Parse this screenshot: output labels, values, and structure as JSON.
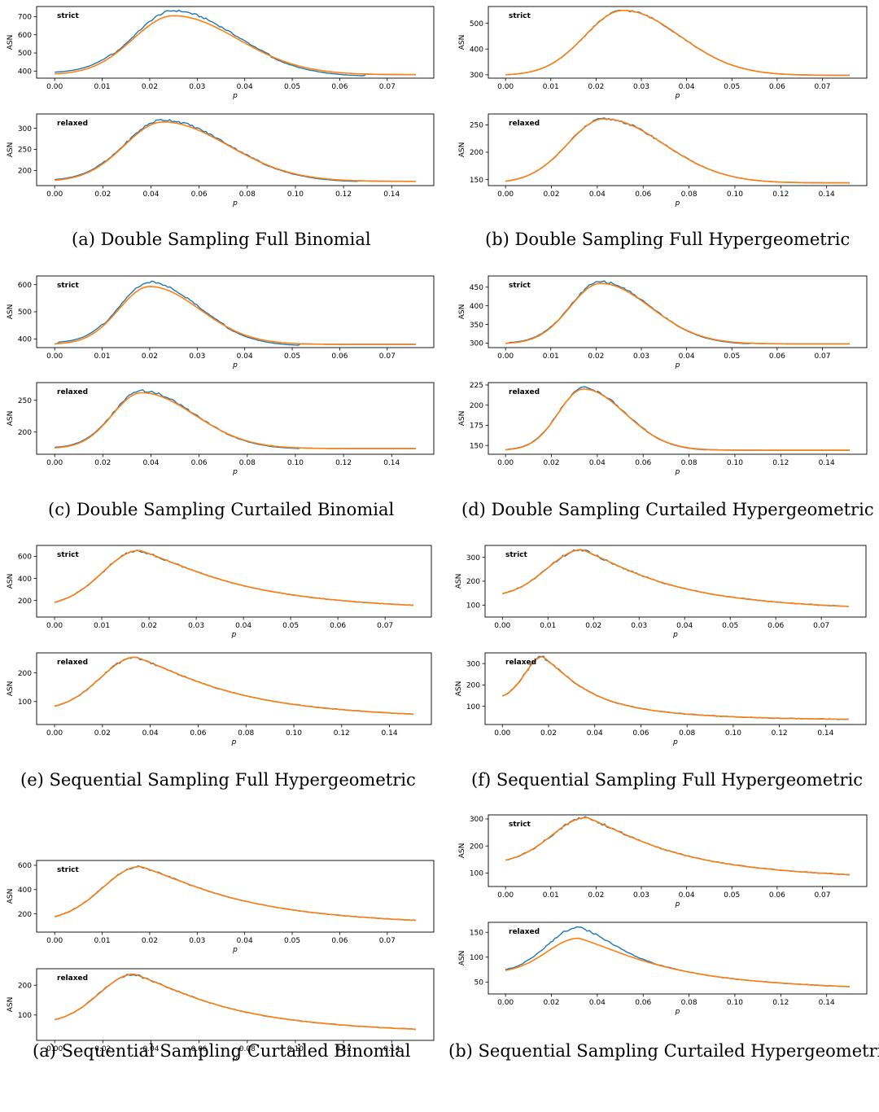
{
  "colors": {
    "empirical": "#1f77b4",
    "fitted": "#ff7f0e",
    "axis": "#000000"
  },
  "charts": [
    {
      "caption": "(a) Double Sampling Full Binomial",
      "chart_data": [
        {
          "type": "line",
          "label": "strict",
          "xlabel": "p",
          "ylabel": "ASN",
          "xlim": [
            -0.0038,
            0.0798
          ],
          "ylim": [
            361,
            756
          ],
          "xticks": [
            "0.00",
            "0.01",
            "0.02",
            "0.03",
            "0.04",
            "0.05",
            "0.06",
            "0.07"
          ],
          "yticks": [
            "400",
            "500",
            "600",
            "700"
          ],
          "curve": {
            "base": 380,
            "peak": 705,
            "center": 0.025,
            "sl": 0.0085,
            "sr": 0.0135,
            "noise": 0.03,
            "tilt": 0.25,
            "xmax": 0.076
          }
        },
        {
          "type": "line",
          "label": "relaxed",
          "xlabel": "p",
          "ylabel": "ASN",
          "xlim": [
            -0.0075,
            0.1575
          ],
          "ylim": [
            164,
            334
          ],
          "xticks": [
            "0.00",
            "0.02",
            "0.04",
            "0.06",
            "0.08",
            "0.10",
            "0.12",
            "0.14"
          ],
          "yticks": [
            "200",
            "250",
            "300"
          ],
          "curve": {
            "base": 174,
            "peak": 315,
            "center": 0.045,
            "sl": 0.016,
            "sr": 0.027,
            "noise": 0.035,
            "tilt": 0.1,
            "xmax": 0.15
          }
        }
      ]
    },
    {
      "caption": "(b) Double Sampling Full Hypergeometric",
      "chart_data": [
        {
          "type": "line",
          "label": "strict",
          "xlabel": "p",
          "ylabel": "ASN",
          "xlim": [
            -0.0038,
            0.0798
          ],
          "ylim": [
            287,
            565
          ],
          "xticks": [
            "0.00",
            "0.01",
            "0.02",
            "0.03",
            "0.04",
            "0.05",
            "0.06",
            "0.07"
          ],
          "yticks": [
            "300",
            "400",
            "500"
          ],
          "curve": {
            "base": 298,
            "peak": 550,
            "center": 0.026,
            "sl": 0.0085,
            "sr": 0.0125,
            "noise": 0.025,
            "tilt": 0,
            "xmax": 0.076
          }
        },
        {
          "type": "line",
          "label": "relaxed",
          "xlabel": "p",
          "ylabel": "ASN",
          "xlim": [
            -0.0075,
            0.1575
          ],
          "ylim": [
            139,
            270
          ],
          "xticks": [
            "0.00",
            "0.02",
            "0.04",
            "0.06",
            "0.08",
            "0.10",
            "0.12",
            "0.14"
          ],
          "yticks": [
            "150",
            "200",
            "250"
          ],
          "curve": {
            "base": 144,
            "peak": 261,
            "center": 0.043,
            "sl": 0.016,
            "sr": 0.026,
            "noise": 0.03,
            "tilt": 0,
            "xmax": 0.15
          }
        }
      ]
    },
    {
      "caption": "(c) Double Sampling Curtailed Binomial",
      "chart_data": [
        {
          "type": "line",
          "label": "strict",
          "xlabel": "p",
          "ylabel": "ASN",
          "xlim": [
            -0.0038,
            0.0798
          ],
          "ylim": [
            368,
            632
          ],
          "xticks": [
            "0.00",
            "0.01",
            "0.02",
            "0.03",
            "0.04",
            "0.05",
            "0.06",
            "0.07"
          ],
          "yticks": [
            "400",
            "500",
            "600"
          ],
          "curve": {
            "base": 380,
            "peak": 593,
            "center": 0.02,
            "sl": 0.0065,
            "sr": 0.0105,
            "noise": 0.03,
            "tilt": 0.22,
            "xmax": 0.076
          }
        },
        {
          "type": "line",
          "label": "relaxed",
          "xlabel": "p",
          "ylabel": "ASN",
          "xlim": [
            -0.0075,
            0.1575
          ],
          "ylim": [
            165,
            278
          ],
          "xticks": [
            "0.00",
            "0.02",
            "0.04",
            "0.06",
            "0.08",
            "0.10",
            "0.12",
            "0.14"
          ],
          "yticks": [
            "200",
            "250"
          ],
          "curve": {
            "base": 174,
            "peak": 262,
            "center": 0.036,
            "sl": 0.012,
            "sr": 0.022,
            "noise": 0.035,
            "tilt": 0.1,
            "xmax": 0.15
          }
        }
      ]
    },
    {
      "caption": "(d) Double Sampling Curtailed Hypergeometric",
      "chart_data": [
        {
          "type": "line",
          "label": "strict",
          "xlabel": "p",
          "ylabel": "ASN",
          "xlim": [
            -0.0038,
            0.0798
          ],
          "ylim": [
            288,
            480
          ],
          "xticks": [
            "0.00",
            "0.01",
            "0.02",
            "0.03",
            "0.04",
            "0.05",
            "0.06",
            "0.07"
          ],
          "yticks": [
            "300",
            "350",
            "400",
            "450"
          ],
          "curve": {
            "base": 298,
            "peak": 460,
            "center": 0.021,
            "sl": 0.0068,
            "sr": 0.011,
            "noise": 0.03,
            "tilt": 0.08,
            "xmax": 0.076
          }
        },
        {
          "type": "line",
          "label": "relaxed",
          "xlabel": "p",
          "ylabel": "ASN",
          "xlim": [
            -0.0075,
            0.1575
          ],
          "ylim": [
            139,
            228
          ],
          "xticks": [
            "0.00",
            "0.02",
            "0.04",
            "0.06",
            "0.08",
            "0.10",
            "0.12",
            "0.14"
          ],
          "yticks": [
            "150",
            "175",
            "200",
            "225"
          ],
          "curve": {
            "base": 144,
            "peak": 220,
            "center": 0.034,
            "sl": 0.011,
            "sr": 0.018,
            "noise": 0.035,
            "tilt": 0.05,
            "xmax": 0.15
          }
        }
      ]
    },
    {
      "caption": "(e) Sequential Sampling Full Hypergeometric",
      "chart_data": [
        {
          "type": "line",
          "label": "strict",
          "xlabel": "p",
          "ylabel": "ASN",
          "xlim": [
            -0.0038,
            0.0798
          ],
          "ylim": [
            50,
            700
          ],
          "xticks": [
            "0.00",
            "0.01",
            "0.02",
            "0.03",
            "0.04",
            "0.05",
            "0.06",
            "0.07"
          ],
          "yticks": [
            "200",
            "400",
            "600"
          ],
          "curve": {
            "mode": "seq",
            "start": 145,
            "peak": 655,
            "end": 78,
            "center": 0.018,
            "k": 0.48,
            "noise": 0.012,
            "tilt": 0,
            "xmax": 0.076
          }
        },
        {
          "type": "line",
          "label": "relaxed",
          "xlabel": "p",
          "ylabel": "ASN",
          "xlim": [
            -0.0075,
            0.1575
          ],
          "ylim": [
            20,
            270
          ],
          "xticks": [
            "0.00",
            "0.02",
            "0.04",
            "0.06",
            "0.08",
            "0.10",
            "0.12",
            "0.14"
          ],
          "yticks": [
            "100",
            "200"
          ],
          "curve": {
            "mode": "seq",
            "start": 70,
            "peak": 255,
            "end": 28,
            "center": 0.034,
            "k": 0.48,
            "noise": 0.012,
            "tilt": 0,
            "xmax": 0.15
          }
        }
      ]
    },
    {
      "caption": "(f) Sequential Sampling Full Hypergeometric",
      "chart_data": [
        {
          "type": "line",
          "label": "strict",
          "xlabel": "p",
          "ylabel": "ASN",
          "xlim": [
            -0.0038,
            0.0798
          ],
          "ylim": [
            50,
            350
          ],
          "xticks": [
            "0.00",
            "0.01",
            "0.02",
            "0.03",
            "0.04",
            "0.05",
            "0.06",
            "0.07"
          ],
          "yticks": [
            "100",
            "200",
            "300"
          ],
          "curve": {
            "mode": "seq",
            "start": 133,
            "peak": 332,
            "end": 64,
            "center": 0.0175,
            "k": 0.55,
            "noise": 0.015,
            "tilt": 0,
            "xmax": 0.076
          }
        },
        {
          "type": "line",
          "label": "relaxed",
          "xlabel": "p",
          "ylabel": "ASN",
          "xlim": [
            -0.0075,
            0.1575
          ],
          "ylim": [
            15,
            350
          ],
          "xticks": [
            "0.00",
            "0.02",
            "0.04",
            "0.06",
            "0.08",
            "0.10",
            "0.12",
            "0.14"
          ],
          "yticks": [
            "100",
            "200",
            "300"
          ],
          "curve": {
            "mode": "seq",
            "start": 133,
            "peak": 332,
            "end": 30,
            "center": 0.0175,
            "k": 0.5,
            "noise": 0.015,
            "tilt": 0,
            "xmax": 0.15
          }
        }
      ]
    },
    {
      "caption": "(a) Sequential Sampling Curtailed Binomial",
      "chart_data": [
        {
          "type": "line",
          "label": "strict",
          "xlabel": "p",
          "ylabel": "ASN",
          "xlim": [
            -0.0038,
            0.0798
          ],
          "ylim": [
            50,
            640
          ],
          "xticks": [
            "0.00",
            "0.01",
            "0.02",
            "0.03",
            "0.04",
            "0.05",
            "0.06",
            "0.07"
          ],
          "yticks": [
            "200",
            "400",
            "600"
          ],
          "curve": {
            "mode": "seq",
            "start": 145,
            "peak": 590,
            "end": 77,
            "center": 0.018,
            "k": 0.48,
            "noise": 0.012,
            "tilt": 0,
            "xmax": 0.076
          }
        },
        {
          "type": "line",
          "label": "relaxed",
          "xlabel": "p",
          "ylabel": "ASN",
          "xlim": [
            -0.0075,
            0.1575
          ],
          "ylim": [
            15,
            255
          ],
          "xticks": [
            "0.00",
            "0.02",
            "0.04",
            "0.06",
            "0.08",
            "0.10",
            "0.12",
            "0.14"
          ],
          "yticks": [
            "100",
            "200"
          ],
          "curve": {
            "mode": "seq",
            "start": 72,
            "peak": 237,
            "end": 28,
            "center": 0.033,
            "k": 0.48,
            "noise": 0.012,
            "tilt": 0,
            "xmax": 0.15
          }
        }
      ]
    },
    {
      "caption": "(b) Sequential Sampling Curtailed Hypergeometric",
      "chart_data": [
        {
          "type": "line",
          "label": "strict",
          "xlabel": "p",
          "ylabel": "ASN",
          "xlim": [
            -0.0038,
            0.0798
          ],
          "ylim": [
            50,
            315
          ],
          "xticks": [
            "0.00",
            "0.01",
            "0.02",
            "0.03",
            "0.04",
            "0.05",
            "0.06",
            "0.07"
          ],
          "yticks": [
            "100",
            "200",
            "300"
          ],
          "curve": {
            "mode": "seq",
            "start": 135,
            "peak": 305,
            "end": 65,
            "center": 0.018,
            "k": 0.55,
            "noise": 0.015,
            "tilt": 0,
            "xmax": 0.076
          }
        },
        {
          "type": "line",
          "label": "relaxed",
          "xlabel": "p",
          "ylabel": "ASN",
          "xlim": [
            -0.0075,
            0.1575
          ],
          "ylim": [
            26,
            170
          ],
          "xticks": [
            "0.00",
            "0.02",
            "0.04",
            "0.06",
            "0.08",
            "0.10",
            "0.12",
            "0.14"
          ],
          "yticks": [
            "50",
            "100",
            "150"
          ],
          "curve": {
            "mode": "seq",
            "start": 68,
            "peak": 138,
            "end": 28,
            "center": 0.032,
            "k": 0.45,
            "noise": 0.015,
            "tilt": 0,
            "bump": 22,
            "xmax": 0.15
          }
        }
      ]
    }
  ]
}
